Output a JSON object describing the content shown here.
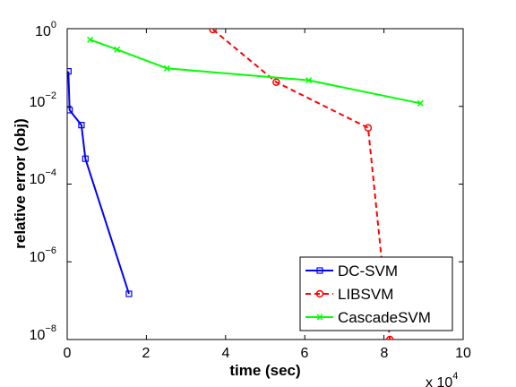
{
  "chart_data": {
    "type": "line",
    "title": "",
    "xlabel": "time (sec)",
    "ylabel": "relative error (obj)",
    "x_multiplier_label": "x 10",
    "x_multiplier_exp": "4",
    "xlim": [
      0,
      100000
    ],
    "ylim": [
      1e-08,
      1
    ],
    "yscale": "log",
    "xticks": [
      0,
      20000,
      40000,
      60000,
      80000,
      100000
    ],
    "xtick_labels": [
      "0",
      "2",
      "4",
      "6",
      "8",
      "10"
    ],
    "yticks": [
      1e-08,
      1e-06,
      0.0001,
      0.01,
      1
    ],
    "ytick_bases": [
      "10",
      "10",
      "10",
      "10",
      "10"
    ],
    "ytick_exps": [
      "−8",
      "−6",
      "−4",
      "−2",
      "0"
    ],
    "grid": false,
    "legend_position": "bottom-right",
    "series": [
      {
        "name": "DC-SVM",
        "color": "#0000ff",
        "line_style": "solid",
        "marker": "square",
        "x": [
          300,
          600,
          3600,
          4600,
          15600
        ],
        "y": [
          0.08,
          0.008,
          0.0033,
          0.00045,
          1.5e-07
        ]
      },
      {
        "name": "LIBSVM",
        "color": "#ff0000",
        "line_style": "dashed",
        "marker": "circle",
        "x": [
          36800,
          52800,
          76000,
          81500
        ],
        "y": [
          0.95,
          0.042,
          0.0028,
          1e-08
        ]
      },
      {
        "name": "CascadeSVM",
        "color": "#00ff00",
        "line_style": "solid",
        "marker": "x",
        "x": [
          5800,
          12600,
          25200,
          61000,
          89200
        ],
        "y": [
          0.52,
          0.29,
          0.095,
          0.047,
          0.012
        ]
      }
    ]
  }
}
